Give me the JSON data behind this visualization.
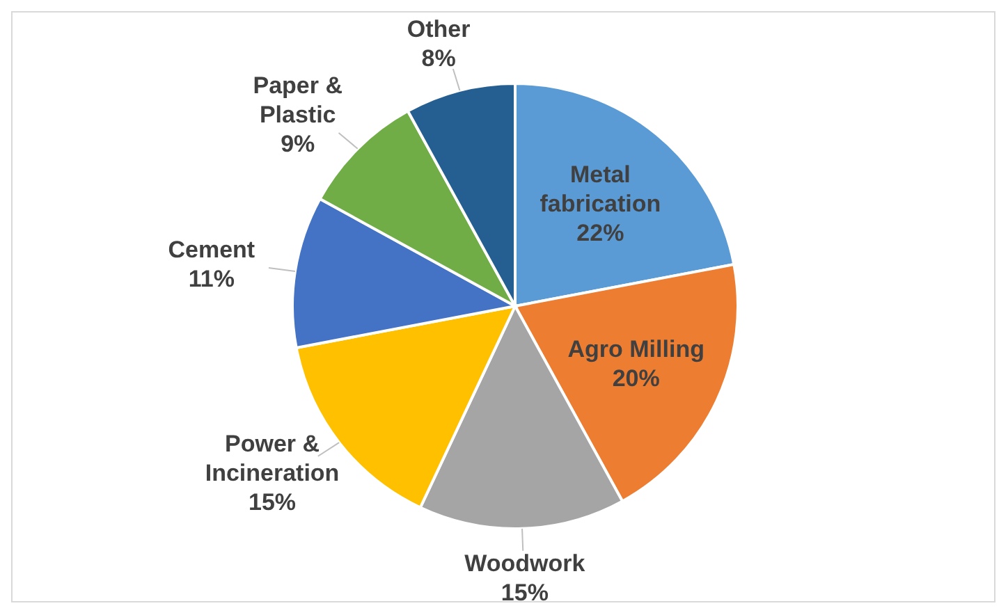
{
  "chart_data": {
    "type": "pie",
    "categories": [
      "Metal fabrication",
      "Agro Milling",
      "Woodwork",
      "Power & Incineration",
      "Cement",
      "Paper & Plastic",
      "Other"
    ],
    "values": [
      22,
      20,
      15,
      15,
      11,
      9,
      8
    ],
    "value_labels": [
      "22%",
      "20%",
      "15%",
      "15%",
      "11%",
      "9%",
      "8%"
    ],
    "colors": [
      "#5b9bd5",
      "#ed7d31",
      "#a5a5a5",
      "#ffc000",
      "#4472c4",
      "#70ad47",
      "#255e91"
    ]
  }
}
